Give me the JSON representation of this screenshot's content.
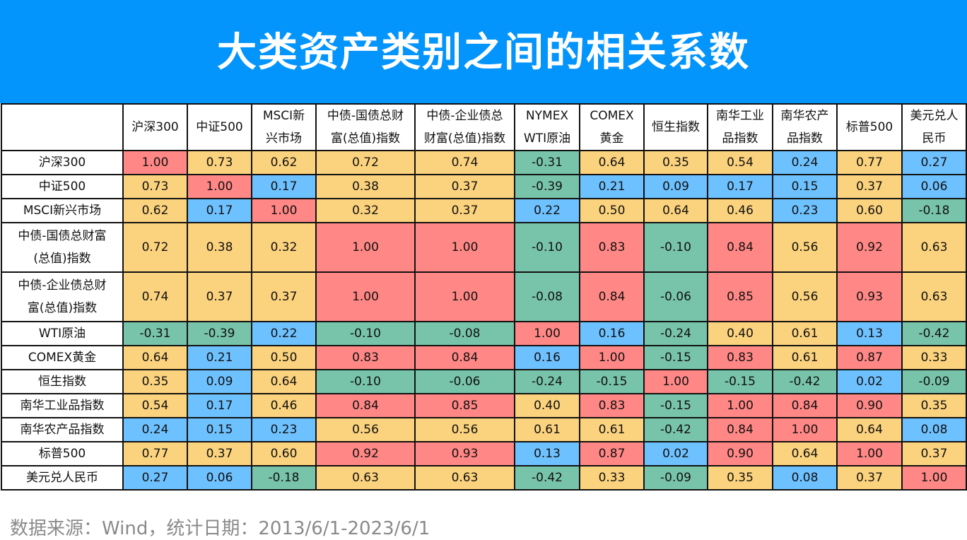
{
  "title": "大类资产类别之间的相关系数",
  "footer": "数据来源：Wind，统计日期：2013/6/1-2023/6/1",
  "colors": {
    "title_bg": "#0394FC",
    "high": "#FF8785",
    "medium": "#FBD27D",
    "low": "#6EC1FF",
    "negative": "#78C4AA"
  },
  "columns": [
    "沪深300",
    "中证500",
    "MSCI新\n兴市场",
    "中债-国债总财\n富(总值)指数",
    "中债-企业债总\n财富(总值)指数",
    "NYMEX\nWTI原油",
    "COMEX\n黄金",
    "恒生指数",
    "南华工业\n品指数",
    "南华农产\n品指数",
    "标普500",
    "美元兑人\n民币"
  ],
  "rows": [
    {
      "label": "沪深300",
      "tall": false,
      "values": [
        "1.00",
        "0.73",
        "0.62",
        "0.72",
        "0.74",
        "-0.31",
        "0.64",
        "0.35",
        "0.54",
        "0.24",
        "0.77",
        "0.27"
      ],
      "colors": [
        "red",
        "yellow",
        "yellow",
        "yellow",
        "yellow",
        "green",
        "yellow",
        "yellow",
        "yellow",
        "blue",
        "yellow",
        "blue"
      ]
    },
    {
      "label": "中证500",
      "tall": false,
      "values": [
        "0.73",
        "1.00",
        "0.17",
        "0.38",
        "0.37",
        "-0.39",
        "0.21",
        "0.09",
        "0.17",
        "0.15",
        "0.37",
        "0.06"
      ],
      "colors": [
        "yellow",
        "red",
        "blue",
        "yellow",
        "yellow",
        "green",
        "blue",
        "blue",
        "blue",
        "blue",
        "yellow",
        "blue"
      ]
    },
    {
      "label": "MSCI新兴市场",
      "tall": false,
      "values": [
        "0.62",
        "0.17",
        "1.00",
        "0.32",
        "0.37",
        "0.22",
        "0.50",
        "0.64",
        "0.46",
        "0.23",
        "0.60",
        "-0.18"
      ],
      "colors": [
        "yellow",
        "blue",
        "red",
        "yellow",
        "yellow",
        "blue",
        "yellow",
        "yellow",
        "yellow",
        "blue",
        "yellow",
        "green"
      ]
    },
    {
      "label": "中债-国债总财富\n(总值)指数",
      "tall": true,
      "values": [
        "0.72",
        "0.38",
        "0.32",
        "1.00",
        "1.00",
        "-0.10",
        "0.83",
        "-0.10",
        "0.84",
        "0.56",
        "0.92",
        "0.63"
      ],
      "colors": [
        "yellow",
        "yellow",
        "yellow",
        "red",
        "red",
        "green",
        "red",
        "green",
        "red",
        "yellow",
        "red",
        "yellow"
      ]
    },
    {
      "label": "中债-企业债总财\n富(总值)指数",
      "tall": true,
      "values": [
        "0.74",
        "0.37",
        "0.37",
        "1.00",
        "1.00",
        "-0.08",
        "0.84",
        "-0.06",
        "0.85",
        "0.56",
        "0.93",
        "0.63"
      ],
      "colors": [
        "yellow",
        "yellow",
        "yellow",
        "red",
        "red",
        "green",
        "red",
        "green",
        "red",
        "yellow",
        "red",
        "yellow"
      ]
    },
    {
      "label": "WTI原油",
      "tall": false,
      "values": [
        "-0.31",
        "-0.39",
        "0.22",
        "-0.10",
        "-0.08",
        "1.00",
        "0.16",
        "-0.24",
        "0.40",
        "0.61",
        "0.13",
        "-0.42"
      ],
      "colors": [
        "green",
        "green",
        "blue",
        "green",
        "green",
        "red",
        "blue",
        "green",
        "yellow",
        "yellow",
        "blue",
        "green"
      ]
    },
    {
      "label": "COMEX黄金",
      "tall": false,
      "values": [
        "0.64",
        "0.21",
        "0.50",
        "0.83",
        "0.84",
        "0.16",
        "1.00",
        "-0.15",
        "0.83",
        "0.61",
        "0.87",
        "0.33"
      ],
      "colors": [
        "yellow",
        "blue",
        "yellow",
        "red",
        "red",
        "blue",
        "red",
        "green",
        "red",
        "yellow",
        "red",
        "yellow"
      ]
    },
    {
      "label": "恒生指数",
      "tall": false,
      "values": [
        "0.35",
        "0.09",
        "0.64",
        "-0.10",
        "-0.06",
        "-0.24",
        "-0.15",
        "1.00",
        "-0.15",
        "-0.42",
        "0.02",
        "-0.09"
      ],
      "colors": [
        "yellow",
        "blue",
        "yellow",
        "green",
        "green",
        "green",
        "green",
        "red",
        "green",
        "green",
        "blue",
        "green"
      ]
    },
    {
      "label": "南华工业品指数",
      "tall": false,
      "values": [
        "0.54",
        "0.17",
        "0.46",
        "0.84",
        "0.85",
        "0.40",
        "0.83",
        "-0.15",
        "1.00",
        "0.84",
        "0.90",
        "0.35"
      ],
      "colors": [
        "yellow",
        "blue",
        "yellow",
        "red",
        "red",
        "yellow",
        "red",
        "green",
        "red",
        "red",
        "red",
        "yellow"
      ]
    },
    {
      "label": "南华农产品指数",
      "tall": false,
      "values": [
        "0.24",
        "0.15",
        "0.23",
        "0.56",
        "0.56",
        "0.61",
        "0.61",
        "-0.42",
        "0.84",
        "1.00",
        "0.64",
        "0.08"
      ],
      "colors": [
        "blue",
        "blue",
        "blue",
        "yellow",
        "yellow",
        "yellow",
        "yellow",
        "green",
        "red",
        "red",
        "yellow",
        "blue"
      ]
    },
    {
      "label": "标普500",
      "tall": false,
      "values": [
        "0.77",
        "0.37",
        "0.60",
        "0.92",
        "0.93",
        "0.13",
        "0.87",
        "0.02",
        "0.90",
        "0.64",
        "1.00",
        "0.37"
      ],
      "colors": [
        "yellow",
        "yellow",
        "yellow",
        "red",
        "red",
        "blue",
        "red",
        "blue",
        "red",
        "yellow",
        "red",
        "yellow"
      ]
    },
    {
      "label": "美元兑人民币",
      "tall": false,
      "values": [
        "0.27",
        "0.06",
        "-0.18",
        "0.63",
        "0.63",
        "-0.42",
        "0.33",
        "-0.09",
        "0.35",
        "0.08",
        "0.37",
        "1.00"
      ],
      "colors": [
        "blue",
        "blue",
        "green",
        "yellow",
        "yellow",
        "green",
        "yellow",
        "green",
        "yellow",
        "blue",
        "yellow",
        "red"
      ]
    }
  ],
  "chart_data": {
    "type": "heatmap",
    "title": "大类资产类别之间的相关系数",
    "subtitle": "",
    "source_note": "数据来源：Wind，统计日期：2013/6/1-2023/6/1",
    "x": [
      "沪深300",
      "中证500",
      "MSCI新兴市场",
      "中债-国债总财富(总值)指数",
      "中债-企业债总财富(总值)指数",
      "NYMEX WTI原油",
      "COMEX黄金",
      "恒生指数",
      "南华工业品指数",
      "南华农产品指数",
      "标普500",
      "美元兑人民币"
    ],
    "y": [
      "沪深300",
      "中证500",
      "MSCI新兴市场",
      "中债-国债总财富(总值)指数",
      "中债-企业债总财富(总值)指数",
      "WTI原油",
      "COMEX黄金",
      "恒生指数",
      "南华工业品指数",
      "南华农产品指数",
      "标普500",
      "美元兑人民币"
    ],
    "values": [
      [
        1.0,
        0.73,
        0.62,
        0.72,
        0.74,
        -0.31,
        0.64,
        0.35,
        0.54,
        0.24,
        0.77,
        0.27
      ],
      [
        0.73,
        1.0,
        0.17,
        0.38,
        0.37,
        -0.39,
        0.21,
        0.09,
        0.17,
        0.15,
        0.37,
        0.06
      ],
      [
        0.62,
        0.17,
        1.0,
        0.32,
        0.37,
        0.22,
        0.5,
        0.64,
        0.46,
        0.23,
        0.6,
        -0.18
      ],
      [
        0.72,
        0.38,
        0.32,
        1.0,
        1.0,
        -0.1,
        0.83,
        -0.1,
        0.84,
        0.56,
        0.92,
        0.63
      ],
      [
        0.74,
        0.37,
        0.37,
        1.0,
        1.0,
        -0.08,
        0.84,
        -0.06,
        0.85,
        0.56,
        0.93,
        0.63
      ],
      [
        -0.31,
        -0.39,
        0.22,
        -0.1,
        -0.08,
        1.0,
        0.16,
        -0.24,
        0.4,
        0.61,
        0.13,
        -0.42
      ],
      [
        0.64,
        0.21,
        0.5,
        0.83,
        0.84,
        0.16,
        1.0,
        -0.15,
        0.83,
        0.61,
        0.87,
        0.33
      ],
      [
        0.35,
        0.09,
        0.64,
        -0.1,
        -0.06,
        -0.24,
        -0.15,
        1.0,
        -0.15,
        -0.42,
        0.02,
        -0.09
      ],
      [
        0.54,
        0.17,
        0.46,
        0.84,
        0.85,
        0.4,
        0.83,
        -0.15,
        1.0,
        0.84,
        0.9,
        0.35
      ],
      [
        0.24,
        0.15,
        0.23,
        0.56,
        0.56,
        0.61,
        0.61,
        -0.42,
        0.84,
        1.0,
        0.64,
        0.08
      ],
      [
        0.77,
        0.37,
        0.6,
        0.92,
        0.93,
        0.13,
        0.87,
        0.02,
        0.9,
        0.64,
        1.0,
        0.37
      ],
      [
        0.27,
        0.06,
        -0.18,
        0.63,
        0.63,
        -0.42,
        0.33,
        -0.09,
        0.35,
        0.08,
        0.37,
        1.0
      ]
    ],
    "color_scale": {
      "negative (<0)": "#78C4AA",
      "low (0 to ~0.3)": "#6EC1FF",
      "medium (~0.3 to ~0.8)": "#FBD27D",
      "high (>~0.8)": "#FF8785"
    },
    "xlabel": "",
    "ylabel": "",
    "legend": "none"
  }
}
